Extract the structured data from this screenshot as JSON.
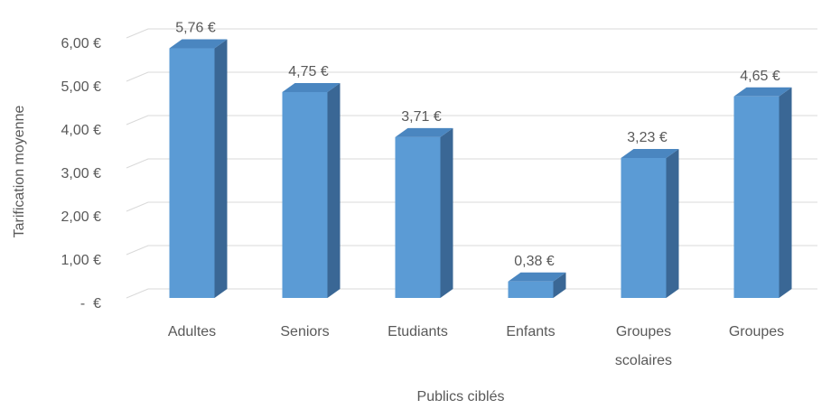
{
  "chart_data": {
    "type": "bar",
    "categories": [
      "Adultes",
      "Seniors",
      "Etudiants",
      "Enfants",
      "Groupes scolaires",
      "Groupes"
    ],
    "values": [
      5.76,
      4.75,
      3.71,
      0.38,
      3.23,
      4.65
    ],
    "value_labels": [
      "5,76 €",
      "4,75 €",
      "3,71 €",
      "0,38 €",
      "3,23 €",
      "4,65 €"
    ],
    "color": "#5b9bd5",
    "ylim": [
      0,
      6
    ],
    "yticks": [
      {
        "value": 0,
        "label": "-  €"
      },
      {
        "value": 1,
        "label": "1,00 €"
      },
      {
        "value": 2,
        "label": "2,00 €"
      },
      {
        "value": 3,
        "label": "3,00 €"
      },
      {
        "value": 4,
        "label": "4,00 €"
      },
      {
        "value": 5,
        "label": "5,00 €"
      },
      {
        "value": 6,
        "label": "6,00 €"
      }
    ],
    "ylabel": "Tarification moyenne",
    "xlabel": "Publics ciblés",
    "grid": true
  }
}
